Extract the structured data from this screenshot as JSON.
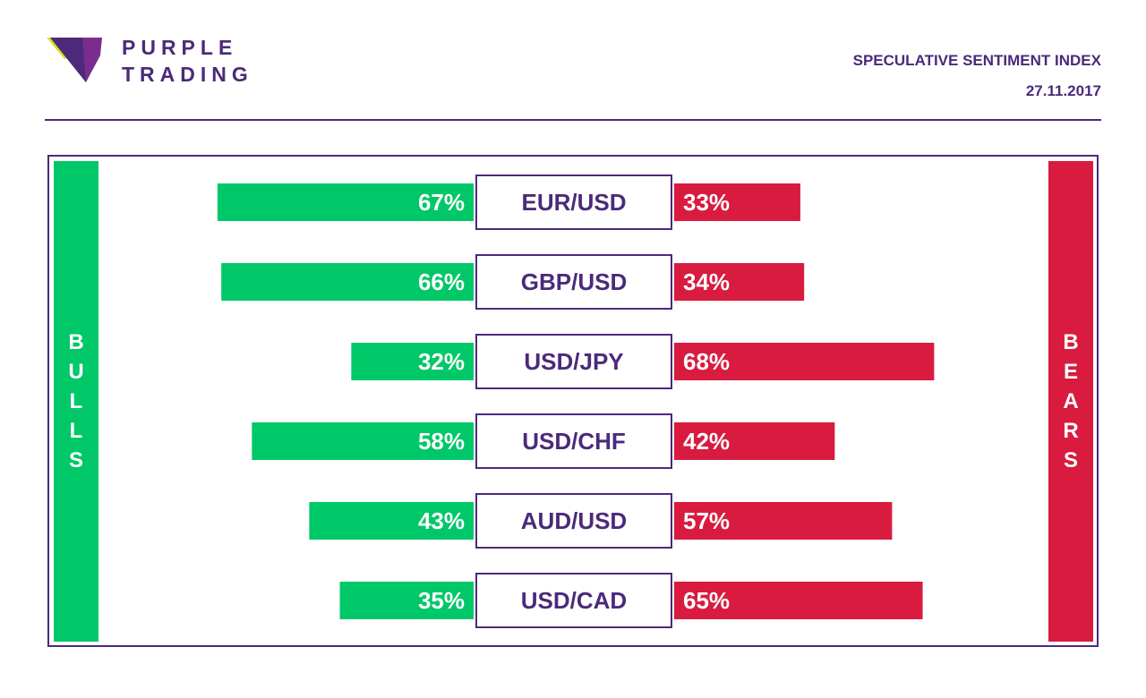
{
  "brand": {
    "line1": "PURPLE",
    "line2": "TRADING"
  },
  "header": {
    "title": "SPECULATIVE SENTIMENT INDEX",
    "date": "27.11.2017"
  },
  "side_labels": {
    "left": "BULLS",
    "right": "BEARS"
  },
  "colors": {
    "bull": "#00c768",
    "bear": "#d81b3f",
    "accent": "#4b2a7a",
    "logo_yellow": "#d9e021"
  },
  "chart_data": {
    "type": "bar",
    "categories": [
      "EUR/USD",
      "GBP/USD",
      "USD/JPY",
      "USD/CHF",
      "AUD/USD",
      "USD/CAD"
    ],
    "series": [
      {
        "name": "BULLS",
        "values": [
          67,
          66,
          32,
          58,
          43,
          35
        ]
      },
      {
        "name": "BEARS",
        "values": [
          33,
          34,
          68,
          42,
          57,
          65
        ]
      }
    ],
    "value_suffix": "%"
  }
}
